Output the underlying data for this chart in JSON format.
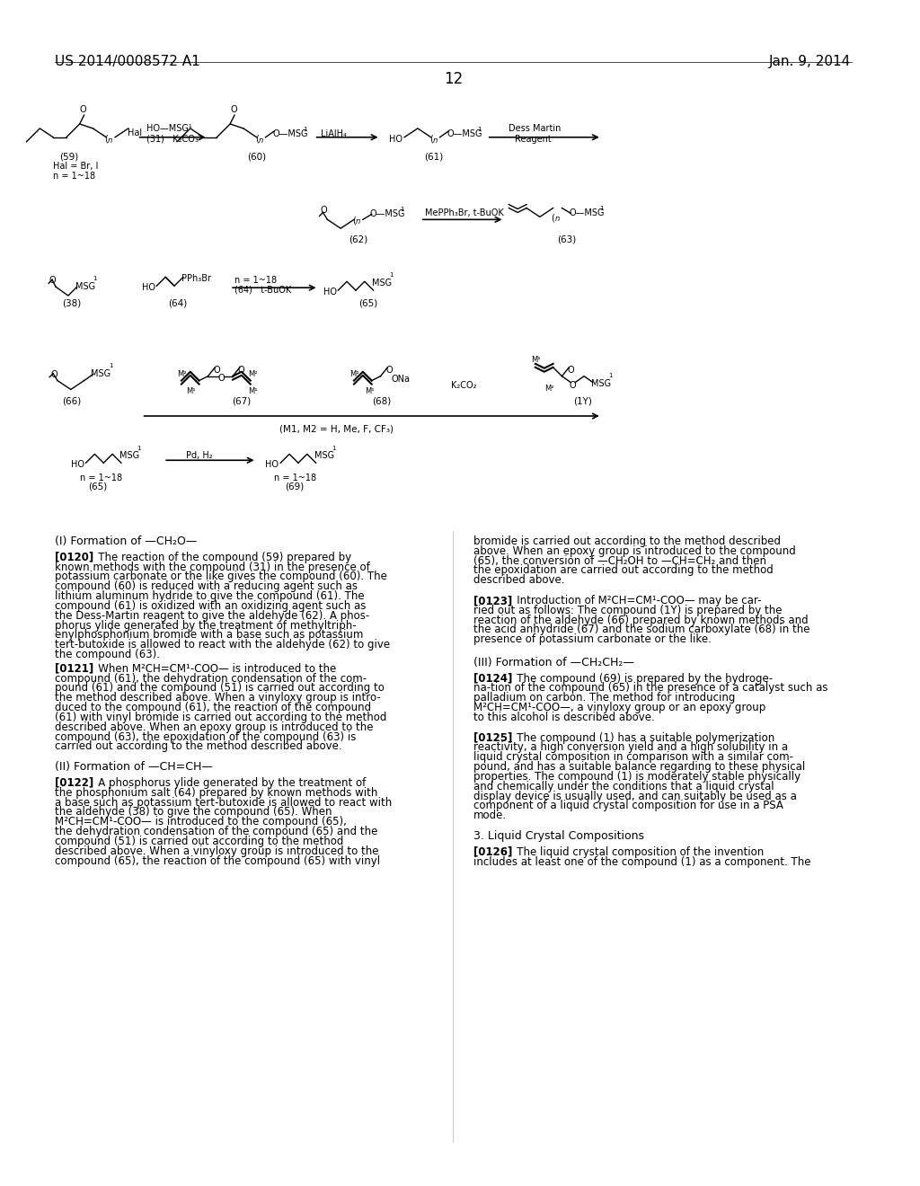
{
  "page_header_left": "US 2014/0008572 A1",
  "page_header_right": "Jan. 9, 2014",
  "page_number": "12",
  "background_color": "#ffffff",
  "text_color": "#000000",
  "diagram_section": {
    "row1": {
      "compounds": [
        "(59)",
        "(60)",
        "(61)"
      ],
      "labels_59": [
        "(59)",
        "Hal = Br, I",
        "n = 1~18"
      ],
      "reagent_1": "HO—MSG¹",
      "reagent_1b": "(31)   K₂CO₃",
      "reagent_2": "LiAlH₄",
      "reagent_3": "Dess Martin\nReagent"
    },
    "row2": {
      "compounds": [
        "(62)",
        "(63)"
      ],
      "reagent": "MePPh₃Br, t-BuOK"
    },
    "row3": {
      "compounds": [
        "(38)",
        "(64)",
        "(65)"
      ],
      "reagent": "n = 1~18\n(64)   t-BuOK"
    },
    "row4": {
      "compounds": [
        "(66)",
        "(67)",
        "(68)",
        "(1Y)"
      ],
      "note": "(M1, M2 = H, Me, F, CF₃)",
      "reagent": "K₂CO₂"
    },
    "row5": {
      "compounds": [
        "(65)",
        "(69)"
      ],
      "labels_65": [
        "n = 1~18",
        "(65)"
      ],
      "labels_69": [
        "n = 1~18",
        "(69)"
      ],
      "reagent": "Pd, H₂"
    }
  },
  "text_sections": [
    {
      "heading": "(I) Formation of —CH₂O—",
      "paragraphs": [
        "[0120] The reaction of the compound (59) prepared by known methods with the compound (31) in the presence of potassium carbonate or the like gives the compound (60). The compound (60) is reduced with a reducing agent such as lithium aluminum hydride to give the compound (61). The compound (61) is oxidized with an oxidizing agent such as the Dess-Martin reagent to give the aldehyde (62). A phosphorus ylide generated by the treatment of methyltriphenylphosphonium bromide with a base such as potassium tert-butoxide is allowed to react with the aldehyde (62) to give the compound (63).",
        "[0121] When M²CH=CM¹-COO— is introduced to the compound (61), the dehydration condensation of the compound (61) and the compound (51) is carried out according to the method described above. When a vinyloxy group is introduced to the compound (61), the reaction of the compound (61) with vinyl bromide is carried out according to the method described above. When an epoxy group is introduced to the compound (63), the epoxidation of the compound (63) is carried out according to the method described above."
      ]
    },
    {
      "heading": "(II) Formation of —CH=CH—",
      "paragraphs": [
        "[0122] A phosphorus ylide generated by the treatment of the phosphonium salt (64) prepared by known methods with a base such as potassium tert-butoxide is allowed to react with the aldehyde (38) to give the compound (65). When M²CH=CM¹-COO— is introduced to the compound (65), the dehydration condensation of the compound (65) and the compound (51) is carried out according to the method described above. When a vinyloxy group is introduced to the compound (65), the reaction of the compound (65) with vinyl"
      ]
    },
    {
      "heading": "",
      "paragraphs": [
        "bromide is carried out according to the method described above. When an epoxy group is introduced to the compound (65), the conversion of —CH₂OH to —CH=CH₂ and then the epoxidation are carried out according to the method described above.",
        "[0123] Introduction of M²CH=CM¹-COO— may be carried out as follows: The compound (1Y) is prepared by the reaction of the aldehyde (66) prepared by known methods and the acid anhydride (67) and the sodium carboxylate (68) in the presence of potassium carbonate or the like."
      ]
    },
    {
      "heading": "(III) Formation of —CH₂CH₂—",
      "paragraphs": [
        "[0124] The compound (69) is prepared by the hydrogenation of the compound (65) in the presence of a catalyst such as palladium on carbon. The method for introducing M²CH=CM¹-COO—, a vinyloxy group or an epoxy group to this alcohol is described above.",
        "[0125] The compound (1) has a suitable polymerization reactivity, a high conversion yield and a high solubility in a liquid crystal composition in comparison with a similar compound, and has a suitable balance regarding to these physical properties. The compound (1) is moderately stable physically and chemically under the conditions that a liquid crystal display device is usually used, and can suitably be used as a component of a liquid crystal composition for use in a PSA mode.",
        "3. Liquid Crystal Compositions",
        "[0126] The liquid crystal composition of the invention includes at least one of the compound (1) as a component. The"
      ]
    }
  ],
  "font_sizes": {
    "header": 11,
    "page_number": 12,
    "diagram_label": 7.5,
    "diagram_reagent": 7,
    "text_heading": 9,
    "text_body": 8.5,
    "text_bold": 8.5
  }
}
